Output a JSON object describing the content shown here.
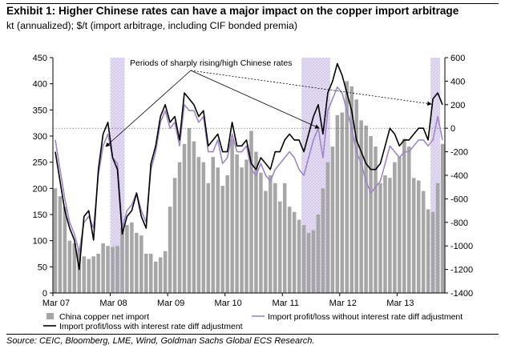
{
  "header": {
    "title": "Exhibit 1: Higher Chinese rates can have a major impact on the copper import arbitrage",
    "subtitle": "kt (annualized); $/t (import arbitrage, including CIF bonded premia)"
  },
  "source": "Source: CEIC, Bloomberg, LME, Wind, Goldman Sachs Global ECS Research.",
  "chart_data": {
    "type": "bar",
    "title": "Higher Chinese rates can have a major impact on the copper import arbitrage",
    "x_tick_labels": [
      "Mar 07",
      "Mar 08",
      "Mar 09",
      "Mar 10",
      "Mar 11",
      "Mar 12",
      "Mar 13"
    ],
    "y_left": {
      "ticks": [
        0,
        50,
        100,
        150,
        200,
        250,
        300,
        350,
        400,
        450
      ],
      "range": [
        0,
        450
      ]
    },
    "y_right": {
      "ticks": [
        -1400,
        -1200,
        -1000,
        -800,
        -600,
        -400,
        -200,
        0,
        200,
        400,
        600
      ],
      "range": [
        -1400,
        600
      ]
    },
    "annotation": "Periods of sharply rising/high Chinese rates",
    "shaded_periods": [
      {
        "start_month": 12,
        "end_month": 14
      },
      {
        "start_month": 52,
        "end_month": 57
      },
      {
        "start_month": 79,
        "end_month": 80
      }
    ],
    "series": [
      {
        "name": "China copper net import",
        "kind": "bar",
        "axis": "left",
        "color": "#a6a6a6",
        "values": [
          200,
          185,
          165,
          100,
          95,
          85,
          70,
          65,
          70,
          75,
          95,
          90,
          88,
          90,
          125,
          130,
          135,
          115,
          110,
          75,
          75,
          60,
          68,
          80,
          165,
          220,
          250,
          285,
          315,
          290,
          260,
          250,
          210,
          260,
          240,
          205,
          225,
          295,
          265,
          240,
          255,
          310,
          270,
          230,
          195,
          225,
          210,
          175,
          210,
          165,
          155,
          140,
          130,
          115,
          120,
          150,
          200,
          250,
          280,
          340,
          345,
          405,
          395,
          370,
          330,
          320,
          300,
          280,
          210,
          225,
          220,
          250,
          260,
          295,
          280,
          220,
          215,
          195,
          160,
          155,
          210,
          285
        ]
      },
      {
        "name": "Import profit/loss with interest rate diff adjustment",
        "kind": "line",
        "axis": "right",
        "color": "#000000",
        "values": [
          -200,
          -450,
          -700,
          -850,
          -950,
          -1200,
          -750,
          -700,
          -950,
          -350,
          -50,
          50,
          -250,
          -350,
          -900,
          -750,
          -700,
          -550,
          -750,
          -850,
          -300,
          -150,
          100,
          200,
          50,
          100,
          -100,
          300,
          250,
          200,
          100,
          150,
          -150,
          -100,
          -50,
          -200,
          -200,
          50,
          -150,
          -150,
          -100,
          -300,
          -350,
          -250,
          -300,
          -350,
          -200,
          -200,
          -100,
          -50,
          -100,
          -100,
          -200,
          -50,
          100,
          200,
          -50,
          300,
          400,
          550,
          450,
          300,
          150,
          -100,
          -200,
          -300,
          -350,
          -350,
          -300,
          -150,
          0,
          -50,
          -150,
          -100,
          -100,
          -50,
          0,
          0,
          -100,
          250,
          300,
          200
        ]
      },
      {
        "name": "Import profit/loss without interest rate diff adjustment",
        "kind": "line",
        "axis": "right",
        "color": "#9e86c8",
        "values": [
          -100,
          -350,
          -600,
          -800,
          -900,
          -1050,
          -800,
          -750,
          -850,
          -400,
          -150,
          -50,
          -250,
          -300,
          -850,
          -700,
          -650,
          -550,
          -700,
          -800,
          -350,
          -200,
          50,
          150,
          0,
          50,
          -150,
          200,
          150,
          150,
          50,
          100,
          -200,
          -200,
          -100,
          -300,
          -250,
          -50,
          -200,
          -200,
          -150,
          -350,
          -400,
          -300,
          -400,
          -450,
          -350,
          -300,
          -250,
          -200,
          -250,
          -350,
          -400,
          -250,
          -100,
          0,
          -250,
          150,
          250,
          350,
          300,
          150,
          0,
          -200,
          -300,
          -450,
          -550,
          -500,
          -450,
          -300,
          -150,
          -200,
          -250,
          -200,
          -200,
          -150,
          -100,
          -100,
          -150,
          -100,
          100,
          -100
        ]
      }
    ],
    "legend": {
      "placement": "bottom",
      "items": [
        {
          "label": "China copper net import",
          "kind": "bar"
        },
        {
          "label": "Import profit/loss without interest rate diff adjustment",
          "kind": "line-purple"
        },
        {
          "label": "Import profit/loss with interest rate diff adjustment",
          "kind": "line-black"
        }
      ]
    }
  }
}
